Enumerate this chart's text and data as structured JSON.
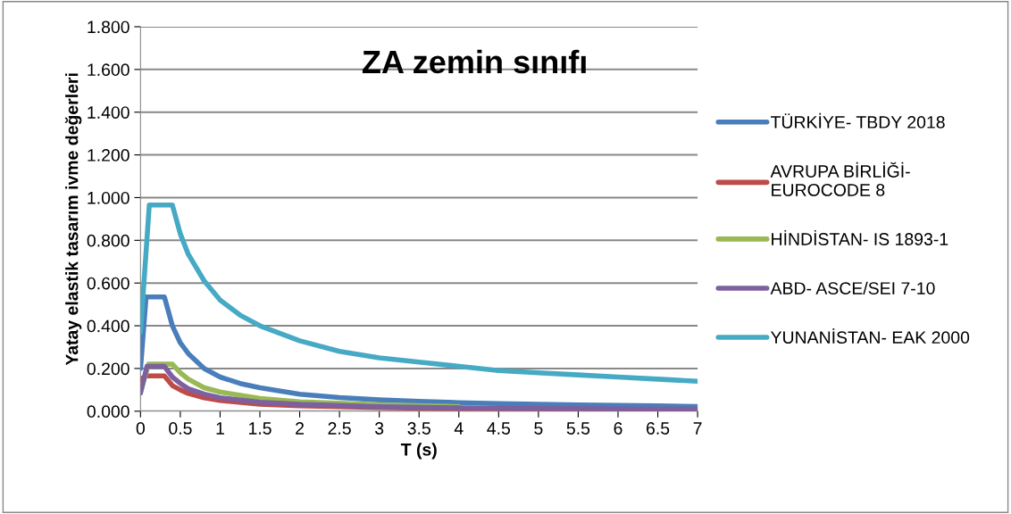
{
  "chart_data": {
    "type": "line",
    "title": "ZA zemin sınıfı",
    "xlabel": "T (s)",
    "ylabel": "Yatay elastik tasarım ivme değerleri",
    "xlim": [
      0,
      7
    ],
    "xticks": [
      0,
      0.5,
      1,
      1.5,
      2,
      2.5,
      3,
      3.5,
      4,
      4.5,
      5,
      5.5,
      6,
      6.5,
      7
    ],
    "ylim": [
      0,
      1.8
    ],
    "yticks": [
      {
        "value": 0,
        "label": "0.000"
      },
      {
        "value": 0.2,
        "label": "0.200"
      },
      {
        "value": 0.4,
        "label": "0.400"
      },
      {
        "value": 0.6,
        "label": "0.600"
      },
      {
        "value": 0.8,
        "label": "0.800"
      },
      {
        "value": 1.0,
        "label": "1.000"
      },
      {
        "value": 1.2,
        "label": "1.200"
      },
      {
        "value": 1.4,
        "label": "1.400"
      },
      {
        "value": 1.6,
        "label": "1.600"
      },
      {
        "value": 1.8,
        "label": "1.800"
      }
    ],
    "grid": "y",
    "legend": "right",
    "marker": "none",
    "line_style": "solid",
    "series": [
      {
        "name": "TÜRKİYE- TBDY 2018",
        "color": "#4a7ebb",
        "x": [
          0,
          0.07,
          0.3,
          0.4,
          0.5,
          0.6,
          0.8,
          1,
          1.25,
          1.5,
          2,
          2.5,
          3,
          3.5,
          4,
          4.5,
          5,
          5.5,
          6,
          6.5,
          7
        ],
        "values": [
          0.2,
          0.535,
          0.535,
          0.4,
          0.32,
          0.27,
          0.2,
          0.16,
          0.13,
          0.11,
          0.08,
          0.064,
          0.053,
          0.046,
          0.04,
          0.036,
          0.032,
          0.029,
          0.027,
          0.025,
          0.022
        ]
      },
      {
        "name": "AVRUPA BİRLİĞİ-\nEUROCODE 8",
        "color": "#be4b48",
        "x": [
          0,
          0.07,
          0.3,
          0.4,
          0.5,
          0.6,
          0.8,
          1,
          1.5,
          2,
          3,
          4,
          5,
          6,
          7
        ],
        "values": [
          0.15,
          0.165,
          0.165,
          0.12,
          0.1,
          0.083,
          0.063,
          0.05,
          0.033,
          0.025,
          0.017,
          0.012,
          0.01,
          0.008,
          0.007
        ]
      },
      {
        "name": "HİNDİSTAN- IS 1893-1",
        "color": "#98b954",
        "x": [
          0,
          0.1,
          0.4,
          0.5,
          0.6,
          0.8,
          1,
          1.5,
          2,
          3,
          4
        ],
        "values": [
          0.09,
          0.22,
          0.22,
          0.18,
          0.15,
          0.11,
          0.09,
          0.06,
          0.044,
          0.03,
          0.022
        ]
      },
      {
        "name": "ABD- ASCE/SEI 7-10",
        "color": "#7d60a0",
        "x": [
          0,
          0.08,
          0.3,
          0.4,
          0.5,
          0.6,
          0.8,
          1,
          1.5,
          2,
          3,
          4,
          5,
          6,
          7
        ],
        "values": [
          0.085,
          0.21,
          0.21,
          0.16,
          0.13,
          0.105,
          0.08,
          0.063,
          0.042,
          0.032,
          0.021,
          0.016,
          0.013,
          0.011,
          0.009
        ]
      },
      {
        "name": "YUNANİSTAN- EAK 2000",
        "color": "#46aac5",
        "x": [
          0,
          0.11,
          0.4,
          0.5,
          0.6,
          0.8,
          1,
          1.25,
          1.5,
          2,
          2.5,
          3,
          3.5,
          4,
          4.5,
          5,
          5.5,
          6,
          6.5,
          7
        ],
        "values": [
          0.37,
          0.965,
          0.965,
          0.83,
          0.735,
          0.61,
          0.52,
          0.45,
          0.4,
          0.33,
          0.28,
          0.25,
          0.23,
          0.21,
          0.19,
          0.18,
          0.17,
          0.16,
          0.15,
          0.14
        ]
      }
    ]
  }
}
